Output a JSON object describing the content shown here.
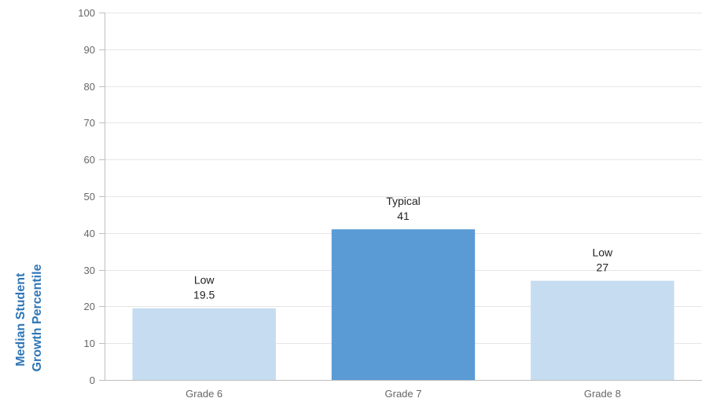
{
  "chart_data": {
    "type": "bar",
    "title": "",
    "xlabel": "",
    "ylabel_lines": [
      "Median Student",
      "Growth Percentile"
    ],
    "ylim": [
      0,
      100
    ],
    "yticks": [
      0,
      10,
      20,
      30,
      40,
      50,
      60,
      70,
      80,
      90,
      100
    ],
    "grid": true,
    "categories": [
      "Grade 6",
      "Grade 7",
      "Grade 8"
    ],
    "values": [
      19.5,
      41,
      27
    ],
    "bar_labels": [
      "Low",
      "Typical",
      "Low"
    ],
    "value_labels": [
      "19.5",
      "41",
      "27"
    ],
    "bar_colors": [
      "#c6dcf0",
      "#5b9bd5",
      "#c6dcf0"
    ]
  },
  "colors": {
    "ylabel": "#2e75b6",
    "grid": "#e6e6e6",
    "axis": "#bfbfbf"
  }
}
